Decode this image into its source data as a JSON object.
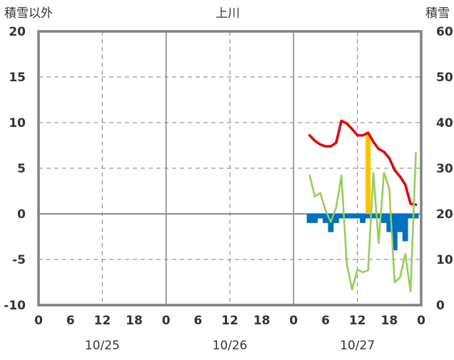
{
  "chart_data": {
    "type": "bar+line",
    "title": "上川",
    "ylabel_left": "積雪以外",
    "ylabel_right": "積雪",
    "ylim_left": [
      -10,
      20
    ],
    "ylim_right": [
      0,
      60
    ],
    "yticks_left": [
      "20",
      "15",
      "10",
      "5",
      "0",
      "-5",
      "-10"
    ],
    "yticks_right": [
      "60",
      "50",
      "40",
      "30",
      "20",
      "10",
      "0"
    ],
    "xlim_hours": [
      0,
      72
    ],
    "x_tick_labels": [
      "0",
      "6",
      "12",
      "18",
      "0",
      "6",
      "12",
      "18",
      "0",
      "6",
      "12",
      "18",
      "0"
    ],
    "date_labels": [
      "10/25",
      "10/26",
      "10/27"
    ],
    "grid": true,
    "colors": {
      "temperature": "#ee0000",
      "humidity": "#92d050",
      "precipitation": "#ffc000",
      "snow_change": "#0070c0",
      "snow_depth": "#7030a0",
      "axis": "#808080",
      "grid": "#808080"
    },
    "series": [
      {
        "key": "temperature",
        "kind": "line",
        "axis": "left",
        "x": [
          51,
          52,
          53,
          54,
          55,
          56,
          57,
          58,
          59,
          60,
          61,
          62,
          63,
          64,
          65,
          66,
          67,
          68,
          69,
          70,
          71
        ],
        "values": [
          8.6,
          8.0,
          7.6,
          7.4,
          7.4,
          7.8,
          10.2,
          9.9,
          9.3,
          8.6,
          8.6,
          8.9,
          7.9,
          7.1,
          6.8,
          6.1,
          4.8,
          4.1,
          3.2,
          1.1,
          1.0
        ]
      },
      {
        "key": "humidity",
        "kind": "line",
        "axis": "left",
        "x": [
          51,
          52,
          53,
          54,
          55,
          56,
          57,
          58,
          59,
          60,
          61,
          62,
          63,
          64,
          65,
          66,
          67,
          68,
          69,
          70,
          71
        ],
        "values": [
          4.2,
          1.9,
          2.3,
          0.4,
          -0.9,
          0.7,
          4.2,
          -5.5,
          -8.3,
          -6.1,
          -6.4,
          -6.2,
          4.5,
          -3.2,
          4.5,
          2.8,
          -7.5,
          -7.0,
          -4.4,
          -8.5,
          6.7
        ]
      },
      {
        "key": "precipitation",
        "kind": "bar",
        "axis": "left",
        "x": [
          62
        ],
        "values": [
          8.8
        ]
      },
      {
        "key": "snow_change",
        "kind": "bar",
        "axis": "left",
        "x": [
          51,
          52,
          53,
          54,
          55,
          56,
          57,
          58,
          59,
          60,
          61,
          62,
          63,
          64,
          65,
          66,
          67,
          68,
          69,
          70,
          71
        ],
        "values": [
          -1.0,
          -1.0,
          -0.5,
          -1.0,
          -2.0,
          -1.0,
          -0.5,
          -0.5,
          -0.5,
          -0.5,
          -1.0,
          -0.5,
          -0.5,
          -0.5,
          -1.0,
          -2.0,
          -4.0,
          -2.0,
          -3.0,
          -0.5,
          -0.5
        ]
      },
      {
        "key": "snow_depth",
        "kind": "line",
        "axis": "right",
        "x": [
          51,
          71
        ],
        "values": [
          0,
          0
        ]
      }
    ]
  }
}
